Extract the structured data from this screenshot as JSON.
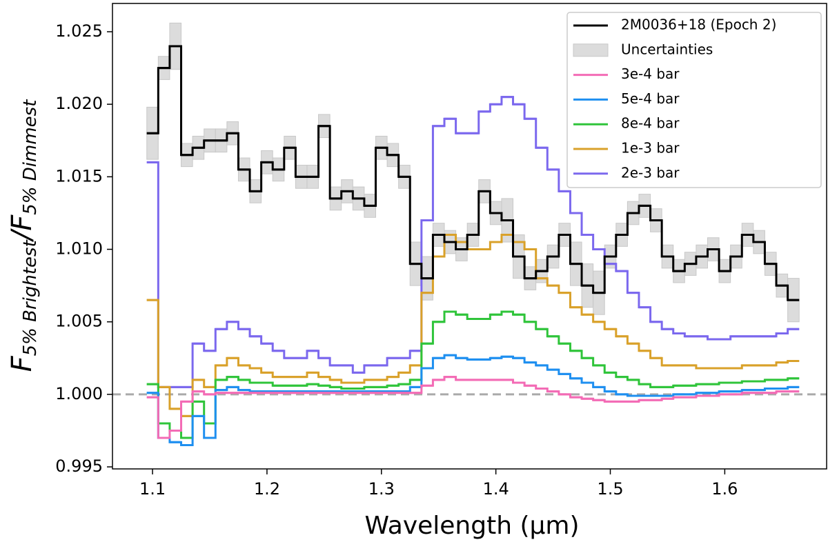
{
  "chart_data": {
    "type": "step",
    "xlabel": "Wavelength (μm)",
    "ylabel": [
      "F",
      "5% Brightest",
      "/F",
      "5% Dimmest"
    ],
    "x": [
      1.1,
      1.11,
      1.12,
      1.13,
      1.14,
      1.15,
      1.16,
      1.17,
      1.18,
      1.19,
      1.2,
      1.21,
      1.22,
      1.23,
      1.24,
      1.25,
      1.26,
      1.27,
      1.28,
      1.29,
      1.3,
      1.31,
      1.32,
      1.33,
      1.34,
      1.35,
      1.36,
      1.37,
      1.38,
      1.39,
      1.4,
      1.41,
      1.42,
      1.43,
      1.44,
      1.45,
      1.46,
      1.47,
      1.48,
      1.49,
      1.5,
      1.51,
      1.52,
      1.53,
      1.54,
      1.55,
      1.56,
      1.57,
      1.58,
      1.59,
      1.6,
      1.61,
      1.62,
      1.63,
      1.64,
      1.65,
      1.66
    ],
    "series": [
      {
        "name": "2M0036+18 (Epoch 2)",
        "color": "#000000",
        "values": [
          1.018,
          1.0225,
          1.024,
          1.0165,
          1.017,
          1.0175,
          1.0175,
          1.018,
          1.0155,
          1.014,
          1.016,
          1.0155,
          1.017,
          1.015,
          1.015,
          1.0185,
          1.0135,
          1.014,
          1.0135,
          1.013,
          1.017,
          1.0165,
          1.015,
          1.009,
          1.008,
          1.011,
          1.0105,
          1.01,
          1.011,
          1.014,
          1.0125,
          1.012,
          1.0095,
          1.008,
          1.0085,
          1.0095,
          1.011,
          1.009,
          1.0075,
          1.007,
          1.0095,
          1.011,
          1.0125,
          1.013,
          1.012,
          1.0095,
          1.0085,
          1.009,
          1.0095,
          1.01,
          1.0085,
          1.0095,
          1.011,
          1.0105,
          1.009,
          1.0075,
          1.0065
        ]
      },
      {
        "name": "3e-4 bar",
        "color": "#f36bb5",
        "values": [
          0.9998,
          0.997,
          0.9975,
          0.9995,
          1.0002,
          1.0,
          1.0001,
          1.0001,
          1.0001,
          1.0001,
          1.0001,
          1.0001,
          1.0001,
          1.0001,
          1.0001,
          1.0001,
          1.0001,
          1.0001,
          1.0001,
          1.0001,
          1.0001,
          1.0001,
          1.0001,
          1.0001,
          1.0006,
          1.001,
          1.0012,
          1.001,
          1.001,
          1.001,
          1.001,
          1.001,
          1.0008,
          1.0006,
          1.0004,
          1.0002,
          1.0,
          0.9998,
          0.9997,
          0.9996,
          0.9995,
          0.9995,
          0.9995,
          0.9996,
          0.9996,
          0.9997,
          0.9998,
          0.9998,
          0.9999,
          0.9999,
          1.0,
          1.0,
          1.0001,
          1.0001,
          1.0001,
          1.0002,
          1.0002
        ]
      },
      {
        "name": "5e-4 bar",
        "color": "#1e8ff0",
        "values": [
          1.0001,
          0.997,
          0.9967,
          0.9965,
          0.9985,
          0.997,
          1.0003,
          1.0005,
          1.0003,
          1.0002,
          1.0002,
          1.0002,
          1.0002,
          1.0002,
          1.0002,
          1.0002,
          1.0002,
          1.0002,
          1.0002,
          1.0002,
          1.0002,
          1.0002,
          1.0002,
          1.0005,
          1.0018,
          1.0025,
          1.0027,
          1.0025,
          1.0024,
          1.0024,
          1.0025,
          1.0026,
          1.0025,
          1.0022,
          1.002,
          1.0017,
          1.0014,
          1.0011,
          1.0008,
          1.0005,
          1.0002,
          1.0,
          0.9999,
          0.9999,
          0.9999,
          0.9999,
          1.0,
          1.0,
          1.0001,
          1.0001,
          1.0002,
          1.0002,
          1.0003,
          1.0003,
          1.0004,
          1.0004,
          1.0005
        ]
      },
      {
        "name": "8e-4 bar",
        "color": "#2fc43a",
        "values": [
          1.0007,
          0.998,
          0.9975,
          0.997,
          0.9995,
          0.998,
          1.001,
          1.0012,
          1.001,
          1.0008,
          1.0008,
          1.0006,
          1.0006,
          1.0006,
          1.0007,
          1.0006,
          1.0005,
          1.0004,
          1.0004,
          1.0005,
          1.0005,
          1.0006,
          1.0007,
          1.001,
          1.0035,
          1.005,
          1.0057,
          1.0055,
          1.0052,
          1.0052,
          1.0055,
          1.0057,
          1.0055,
          1.005,
          1.0045,
          1.004,
          1.0035,
          1.003,
          1.0025,
          1.002,
          1.0015,
          1.0012,
          1.001,
          1.0007,
          1.0005,
          1.0005,
          1.0006,
          1.0006,
          1.0007,
          1.0007,
          1.0008,
          1.0008,
          1.0009,
          1.0009,
          1.001,
          1.001,
          1.0011
        ]
      },
      {
        "name": "1e-3 bar",
        "color": "#d9a12a",
        "values": [
          1.0065,
          1.0005,
          0.999,
          0.9985,
          1.001,
          1.0005,
          1.002,
          1.0025,
          1.002,
          1.0018,
          1.0015,
          1.0012,
          1.0012,
          1.0012,
          1.0015,
          1.0012,
          1.001,
          1.0008,
          1.0008,
          1.001,
          1.001,
          1.0012,
          1.0015,
          1.002,
          1.007,
          1.0095,
          1.011,
          1.0105,
          1.01,
          1.01,
          1.0105,
          1.011,
          1.0105,
          1.01,
          1.008,
          1.0075,
          1.007,
          1.006,
          1.0055,
          1.005,
          1.0045,
          1.004,
          1.0035,
          1.003,
          1.0025,
          1.002,
          1.002,
          1.002,
          1.0018,
          1.0018,
          1.0018,
          1.0018,
          1.002,
          1.002,
          1.002,
          1.0022,
          1.0023
        ]
      },
      {
        "name": "2e-3 bar",
        "color": "#7b68ee",
        "values": [
          1.016,
          1.0005,
          1.0005,
          1.0005,
          1.0035,
          1.003,
          1.0045,
          1.005,
          1.0045,
          1.004,
          1.0035,
          1.003,
          1.0025,
          1.0025,
          1.003,
          1.0025,
          1.002,
          1.002,
          1.0015,
          1.002,
          1.002,
          1.0025,
          1.0025,
          1.003,
          1.012,
          1.0185,
          1.019,
          1.018,
          1.018,
          1.0195,
          1.02,
          1.0205,
          1.02,
          1.019,
          1.017,
          1.0155,
          1.014,
          1.0125,
          1.011,
          1.01,
          1.009,
          1.0085,
          1.007,
          1.006,
          1.005,
          1.0045,
          1.0042,
          1.004,
          1.004,
          1.0038,
          1.0038,
          1.004,
          1.004,
          1.004,
          1.004,
          1.0042,
          1.0045
        ]
      }
    ],
    "uncertainty": {
      "name": "Uncertainties",
      "color": "#dcdcdc",
      "errors": [
        0.0018,
        0.0008,
        0.0016,
        0.0008,
        0.0008,
        0.0008,
        0.0008,
        0.0008,
        0.0008,
        0.0008,
        0.0008,
        0.0008,
        0.0008,
        0.0008,
        0.0008,
        0.0008,
        0.0008,
        0.0008,
        0.0008,
        0.0008,
        0.0008,
        0.0008,
        0.0008,
        0.0015,
        0.0015,
        0.0008,
        0.0008,
        0.0008,
        0.0008,
        0.0008,
        0.0008,
        0.0015,
        0.0015,
        0.0008,
        0.0008,
        0.0008,
        0.0008,
        0.0015,
        0.0015,
        0.0015,
        0.0008,
        0.0008,
        0.0008,
        0.0008,
        0.0008,
        0.0008,
        0.0008,
        0.0008,
        0.0008,
        0.0008,
        0.0008,
        0.0008,
        0.0008,
        0.0008,
        0.0008,
        0.0008,
        0.0015
      ]
    },
    "reference_line": 1.0,
    "xlim": [
      1.065,
      1.689
    ],
    "xticks": [
      1.1,
      1.2,
      1.3,
      1.4,
      1.5,
      1.6
    ],
    "ylim": [
      0.99486,
      1.02695
    ],
    "yticks": [
      0.995,
      {
        "value": 1.0,
        "label": "1.000"
      },
      1.005,
      {
        "value": 1.01,
        "label": "1.010"
      },
      1.015,
      {
        "value": 1.02,
        "label": "1.020"
      },
      1.025
    ],
    "legend": "upper right"
  }
}
